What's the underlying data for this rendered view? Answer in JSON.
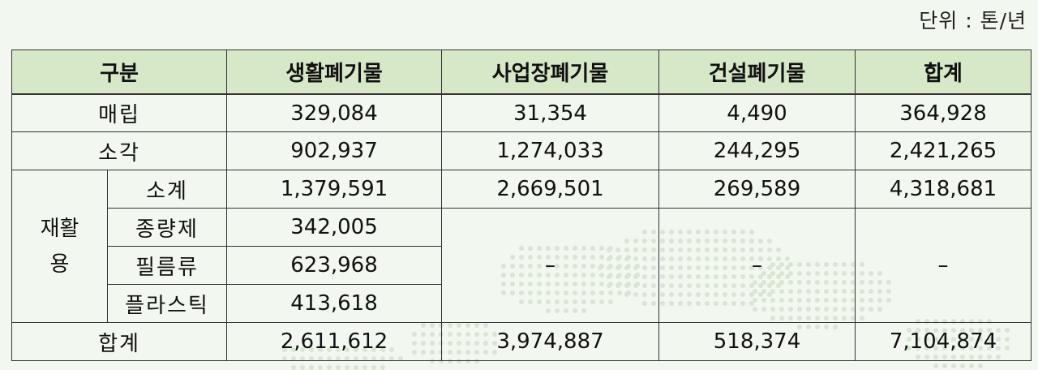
{
  "unit_label": "단위 : 톤/년",
  "table": {
    "headers": [
      "구분",
      "생활폐기물",
      "사업장폐기물",
      "건설폐기물",
      "합계"
    ],
    "rows": {
      "landfill": {
        "label": "매립",
        "values": [
          "329,084",
          "31,354",
          "4,490",
          "364,928"
        ]
      },
      "incineration": {
        "label": "소각",
        "values": [
          "902,937",
          "1,274,033",
          "244,295",
          "2,421,265"
        ]
      },
      "recycling": {
        "group_label": [
          "재활",
          "용"
        ],
        "subtotal": {
          "label": "소계",
          "values": [
            "1,379,591",
            "2,669,501",
            "269,589",
            "4,318,681"
          ]
        },
        "paper": {
          "label": "종량제",
          "value": "342,005"
        },
        "film": {
          "label": "필름류",
          "value": "623,968"
        },
        "plastic": {
          "label": "플라스틱",
          "value": "413,618"
        },
        "merged_dashes": [
          "–",
          "–",
          "–"
        ]
      },
      "total": {
        "label": "합계",
        "values": [
          "2,611,612",
          "3,974,887",
          "518,374",
          "7,104,874"
        ]
      }
    }
  },
  "colors": {
    "background": "#f2f7ef",
    "header_fill": "#d6e8c8",
    "border": "#333333"
  }
}
